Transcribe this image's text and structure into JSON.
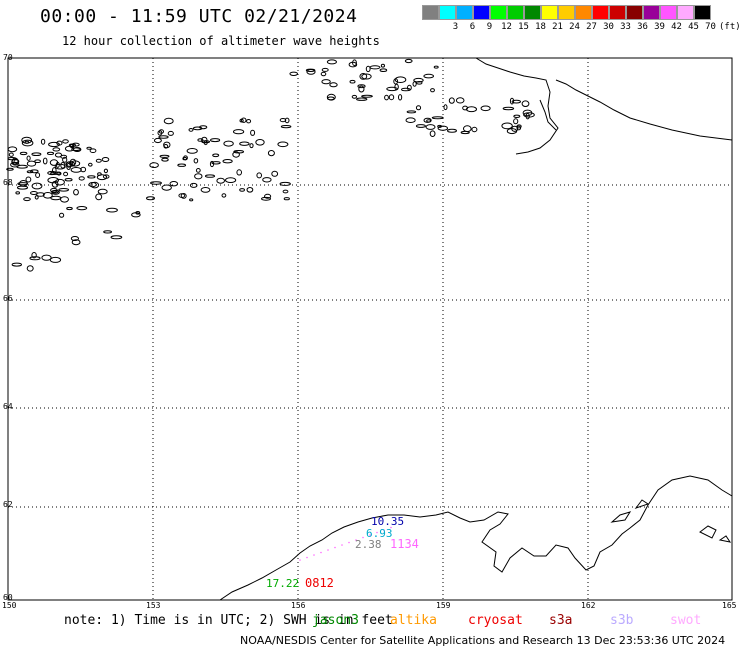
{
  "header": {
    "title": "00:00 - 11:59 UTC 02/21/2024",
    "subtitle": "12 hour collection of altimeter wave heights"
  },
  "legend": {
    "colors": [
      "#808080",
      "#00ffff",
      "#00b0ff",
      "#0000ff",
      "#00ff00",
      "#00cc00",
      "#008800",
      "#ffff00",
      "#ffcc00",
      "#ff8800",
      "#ff0000",
      "#cc0000",
      "#880000",
      "#990099",
      "#ff55ff",
      "#ffaaff",
      "#000000"
    ],
    "labels": [
      "",
      "3",
      "6",
      "9",
      "12",
      "15",
      "18",
      "21",
      "24",
      "27",
      "30",
      "33",
      "36",
      "39",
      "42",
      "45",
      "70",
      "(ft)"
    ]
  },
  "axes": {
    "lat_labels": [
      "70",
      "68",
      "66",
      "64",
      "62",
      "60"
    ],
    "lon_labels": [
      "150",
      "153",
      "156",
      "159",
      "162",
      "165"
    ]
  },
  "swh_readings": [
    {
      "value": "10.35",
      "color": "#0000aa"
    },
    {
      "value": "6.93",
      "color": "#00aacc"
    },
    {
      "value": "2.38",
      "color": "#808080"
    },
    {
      "value": "1134",
      "color": "#ff66ff"
    },
    {
      "value": "17.22",
      "color": "#00aa00"
    },
    {
      "value": "0812",
      "color": "#ee0000"
    }
  ],
  "note": "note: 1) Time is in UTC; 2) SWH is in feet",
  "satellites": [
    {
      "name": "jason3",
      "color": "#008800"
    },
    {
      "name": "altika",
      "color": "#ff9900"
    },
    {
      "name": "cryosat",
      "color": "#ee0000"
    },
    {
      "name": "s3a",
      "color": "#990000"
    },
    {
      "name": "s3b",
      "color": "#bbaaff"
    },
    {
      "name": "swot",
      "color": "#ffaaff"
    }
  ],
  "footer": "NOAA/NESDIS Center for Satellite Applications and Research   13 Dec 23:53:36 UTC 2024"
}
